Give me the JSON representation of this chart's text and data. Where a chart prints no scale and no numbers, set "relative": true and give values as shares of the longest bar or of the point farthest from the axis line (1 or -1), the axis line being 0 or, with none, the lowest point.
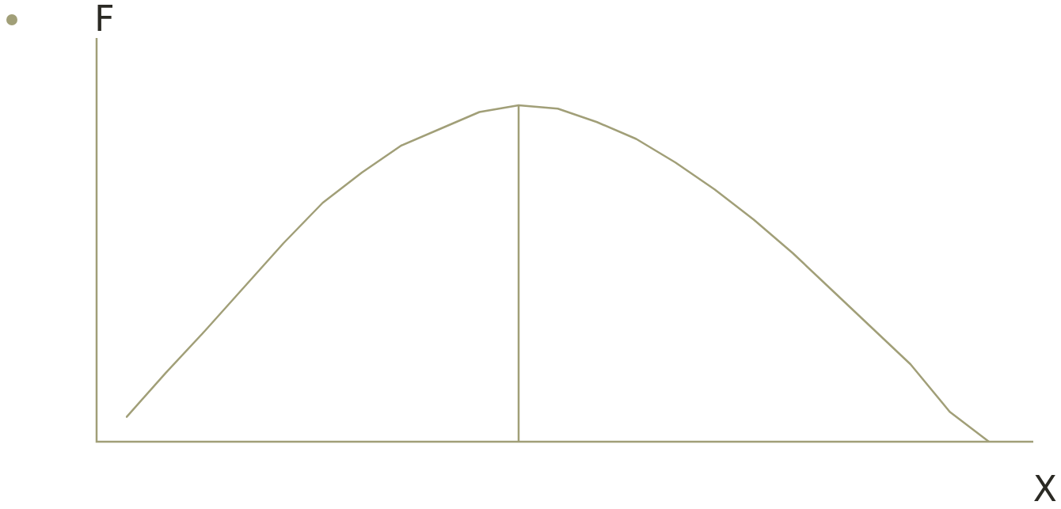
{
  "chart_data": {
    "type": "line",
    "relative": true,
    "xlabel": "X",
    "ylabel": "F",
    "legend": false,
    "marker": "none",
    "line_style": "solid",
    "categories": [
      null,
      null,
      null,
      null,
      null,
      null,
      null,
      null,
      null,
      null,
      null,
      null,
      null,
      null,
      null,
      null,
      null,
      null,
      null,
      null,
      null,
      null,
      null
    ],
    "series": [
      {
        "color": "#a19f78",
        "values": [
          0.074,
          0.205,
          0.33,
          0.46,
          0.59,
          0.71,
          0.8,
          0.88,
          0.93,
          0.98,
          1,
          0.99,
          0.95,
          0.9,
          0.83,
          0.75,
          0.66,
          0.56,
          0.45,
          0.34,
          0.23,
          0.089,
          0
        ]
      }
    ]
  }
}
